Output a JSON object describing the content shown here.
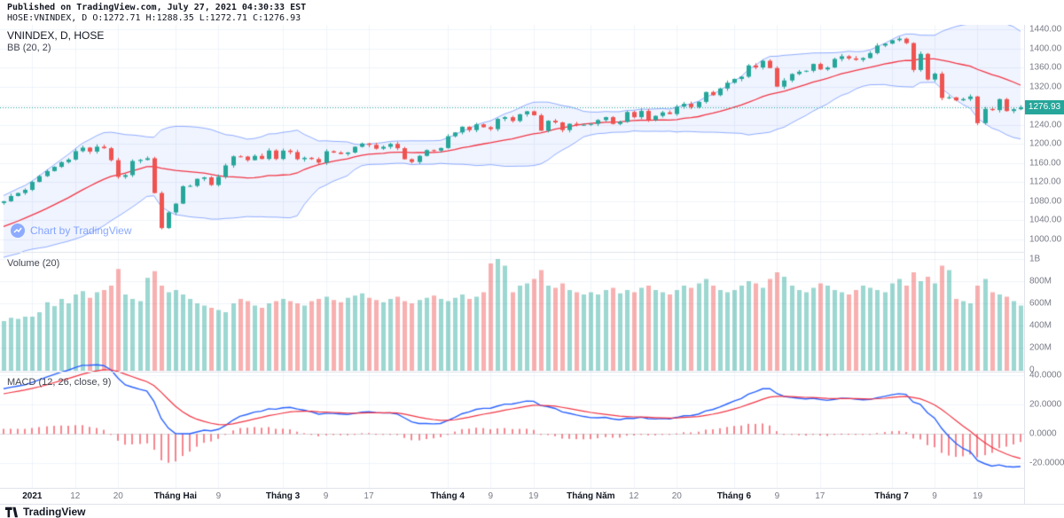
{
  "header": {
    "published_line": "Published on TradingView.com, July 27, 2021 04:30:33 EST",
    "symbol_line": "HOSE:VNINDEX, D O:1272.71 H:1288.35 L:1272.71 C:1276.93"
  },
  "price_pane": {
    "legend_symbol": "VNINDEX, D, HOSE",
    "legend_bb": "BB (20, 2)",
    "watermark": "Chart by TradingView"
  },
  "volume_pane": {
    "legend": "Volume (20)"
  },
  "macd_pane": {
    "legend": "MACD (12, 26, close, 9)"
  },
  "right_axis": {
    "price_ticks": [
      {
        "label": "1440.00",
        "value": 1440
      },
      {
        "label": "1400.00",
        "value": 1400
      },
      {
        "label": "1360.00",
        "value": 1360
      },
      {
        "label": "1320.00",
        "value": 1320
      },
      {
        "label": "1280.00",
        "value": 1280
      },
      {
        "label": "1240.00",
        "value": 1240
      },
      {
        "label": "1200.00",
        "value": 1200
      },
      {
        "label": "1160.00",
        "value": 1160
      },
      {
        "label": "1120.00",
        "value": 1120
      },
      {
        "label": "1080.00",
        "value": 1080
      },
      {
        "label": "1040.00",
        "value": 1040
      },
      {
        "label": "1000.00",
        "value": 1000
      }
    ],
    "volume_ticks": [
      {
        "label": "1B",
        "value": 1000
      },
      {
        "label": "800M",
        "value": 800
      },
      {
        "label": "600M",
        "value": 600
      },
      {
        "label": "400M",
        "value": 400
      },
      {
        "label": "200M",
        "value": 200
      },
      {
        "label": "0",
        "value": 0
      }
    ],
    "macd_ticks": [
      {
        "label": "40.0000",
        "value": 40
      },
      {
        "label": "20.0000",
        "value": 20
      },
      {
        "label": "0.0000",
        "value": 0
      },
      {
        "label": "-20.0000",
        "value": -20
      }
    ],
    "last_price": {
      "label": "1276.93",
      "value": 1276.93
    }
  },
  "time_axis": {
    "labels": [
      {
        "index": 4,
        "label": "2021",
        "major": true
      },
      {
        "index": 10,
        "label": "12",
        "major": false
      },
      {
        "index": 16,
        "label": "20",
        "major": false
      },
      {
        "index": 24,
        "label": "Tháng Hai",
        "major": true
      },
      {
        "index": 30,
        "label": "9",
        "major": false
      },
      {
        "index": 39,
        "label": "Tháng 3",
        "major": true
      },
      {
        "index": 45,
        "label": "9",
        "major": false
      },
      {
        "index": 51,
        "label": "17",
        "major": false
      },
      {
        "index": 62,
        "label": "Tháng 4",
        "major": true
      },
      {
        "index": 68,
        "label": "9",
        "major": false
      },
      {
        "index": 74,
        "label": "19",
        "major": false
      },
      {
        "index": 82,
        "label": "Tháng Năm",
        "major": true
      },
      {
        "index": 88,
        "label": "12",
        "major": false
      },
      {
        "index": 94,
        "label": "20",
        "major": false
      },
      {
        "index": 102,
        "label": "Tháng 6",
        "major": true
      },
      {
        "index": 108,
        "label": "9",
        "major": false
      },
      {
        "index": 114,
        "label": "17",
        "major": false
      },
      {
        "index": 124,
        "label": "Tháng 7",
        "major": true
      },
      {
        "index": 130,
        "label": "9",
        "major": false
      },
      {
        "index": 136,
        "label": "19",
        "major": false
      }
    ]
  },
  "footer": {
    "brand": "TradingView"
  },
  "colors": {
    "up": "#26a69a",
    "down": "#ef5350",
    "bb_fill": "rgba(41,98,255,0.07)",
    "bb_band": "rgba(41,98,255,0.5)",
    "bb_basis": "#f23645",
    "macd": "#2962ff",
    "signal": "#f23645",
    "hist": "rgba(242,54,69,0.6)",
    "last_price": "#26a69a",
    "grid": "#f0f3fa",
    "separator": "#e0e3eb",
    "zero_line": "#dadde0"
  },
  "chart_data": {
    "type": "candlestick",
    "symbol": "VNINDEX",
    "exchange": "HOSE",
    "timeframe": "D",
    "session_ohlc": {
      "open": 1272.71,
      "high": 1288.35,
      "low": 1272.71,
      "close": 1276.93
    },
    "indicators": [
      {
        "name": "BB",
        "params": [
          20,
          2
        ]
      },
      {
        "name": "Volume MA",
        "params": [
          20
        ]
      },
      {
        "name": "MACD",
        "params": [
          12,
          26,
          "close",
          9
        ]
      }
    ],
    "price_ylim": [
      972,
      1449
    ],
    "volume_ylim_millions": [
      0,
      1080
    ],
    "macd_ylim": [
      -36.8,
      42
    ],
    "closes": [
      1080.0,
      1091.0,
      1097.2,
      1103.9,
      1120.5,
      1132.6,
      1143.2,
      1152.0,
      1161.8,
      1167.3,
      1184.9,
      1192.2,
      1184.0,
      1194.2,
      1191.0,
      1166.0,
      1131.0,
      1134.7,
      1164.2,
      1166.5,
      1170.0,
      1097.2,
      1023.9,
      1056.6,
      1075.0,
      1111.3,
      1112.2,
      1126.9,
      1130.0,
      1114.0,
      1131.0,
      1155.0,
      1174.0,
      1173.5,
      1166.0,
      1175.0,
      1168.5,
      1186.2,
      1168.5,
      1186.0,
      1183.0,
      1168.0,
      1171.0,
      1168.3,
      1161.0,
      1184.6,
      1181.9,
      1179.0,
      1182.0,
      1194.0,
      1200.9,
      1198.0,
      1190.0,
      1194.0,
      1200.0,
      1191.0,
      1168.0,
      1162.2,
      1175.0,
      1187.0,
      1186.0,
      1191.4,
      1216.1,
      1224.0,
      1236.0,
      1229.0,
      1241.0,
      1235.0,
      1231.0,
      1252.4,
      1255.9,
      1248.0,
      1262.0,
      1268.3,
      1260.0,
      1227.8,
      1248.5,
      1245.0,
      1229.0,
      1242.2,
      1239.7,
      1240.0,
      1242.0,
      1250.0,
      1256.0,
      1241.8,
      1246.0,
      1266.8,
      1256.0,
      1269.0,
      1250.0,
      1258.7,
      1266.0,
      1262.6,
      1278.0,
      1283.9,
      1277.0,
      1288.0,
      1308.6,
      1302.0,
      1316.0,
      1328.0,
      1336.0,
      1340.8,
      1364.3,
      1360.0,
      1374.0,
      1358.8,
      1319.9,
      1332.9,
      1346.4,
      1351.2,
      1353.1,
      1367.4,
      1356.0,
      1359.9,
      1377.8,
      1383.5,
      1379.0,
      1376.0,
      1379.7,
      1390.1,
      1405.8,
      1410.0,
      1417.1,
      1420.3,
      1411.1,
      1354.8,
      1388.5,
      1334.8,
      1347.1,
      1296.3,
      1297.5,
      1291.2,
      1293.9,
      1299.3,
      1243.5,
      1273.3,
      1270.8,
      1293.7,
      1268.8,
      1272.7,
      1276.93
    ],
    "volumes_millions": [
      440,
      470,
      460,
      480,
      480,
      520,
      610,
      575,
      640,
      600,
      680,
      710,
      650,
      700,
      720,
      760,
      910,
      680,
      640,
      620,
      830,
      890,
      760,
      700,
      720,
      680,
      640,
      600,
      580,
      560,
      540,
      520,
      600,
      640,
      620,
      580,
      560,
      600,
      620,
      640,
      620,
      600,
      580,
      620,
      640,
      660,
      630,
      610,
      650,
      670,
      690,
      650,
      630,
      610,
      640,
      660,
      620,
      600,
      630,
      650,
      670,
      640,
      620,
      650,
      680,
      640,
      660,
      700,
      960,
      1000,
      940,
      700,
      760,
      780,
      820,
      900,
      760,
      740,
      780,
      720,
      700,
      680,
      700,
      680,
      720,
      740,
      690,
      720,
      700,
      740,
      760,
      720,
      700,
      680,
      720,
      760,
      740,
      780,
      820,
      760,
      720,
      700,
      720,
      760,
      800,
      780,
      740,
      820,
      880,
      840,
      760,
      720,
      700,
      740,
      780,
      760,
      720,
      700,
      680,
      720,
      760,
      740,
      720,
      700,
      780,
      820,
      760,
      880,
      800,
      840,
      780,
      940,
      900,
      640,
      620,
      600,
      760,
      820,
      700,
      680,
      660,
      620,
      580
    ],
    "pre_chart_closes_for_indicator_warmup": [
      925.3,
      931.1,
      938.0,
      934.2,
      944.5,
      950.8,
      947.3,
      958.2,
      966.0,
      962.4,
      971.4,
      978.6,
      985.2,
      981.0,
      990.8,
      999.9,
      1005.1,
      1003.0,
      1010.2,
      1021.5,
      1017.0,
      1026.3,
      1030.7,
      1040.2,
      1048.3,
      1052.6,
      1060.9,
      1065.3,
      1072.0,
      1076.4
    ]
  }
}
